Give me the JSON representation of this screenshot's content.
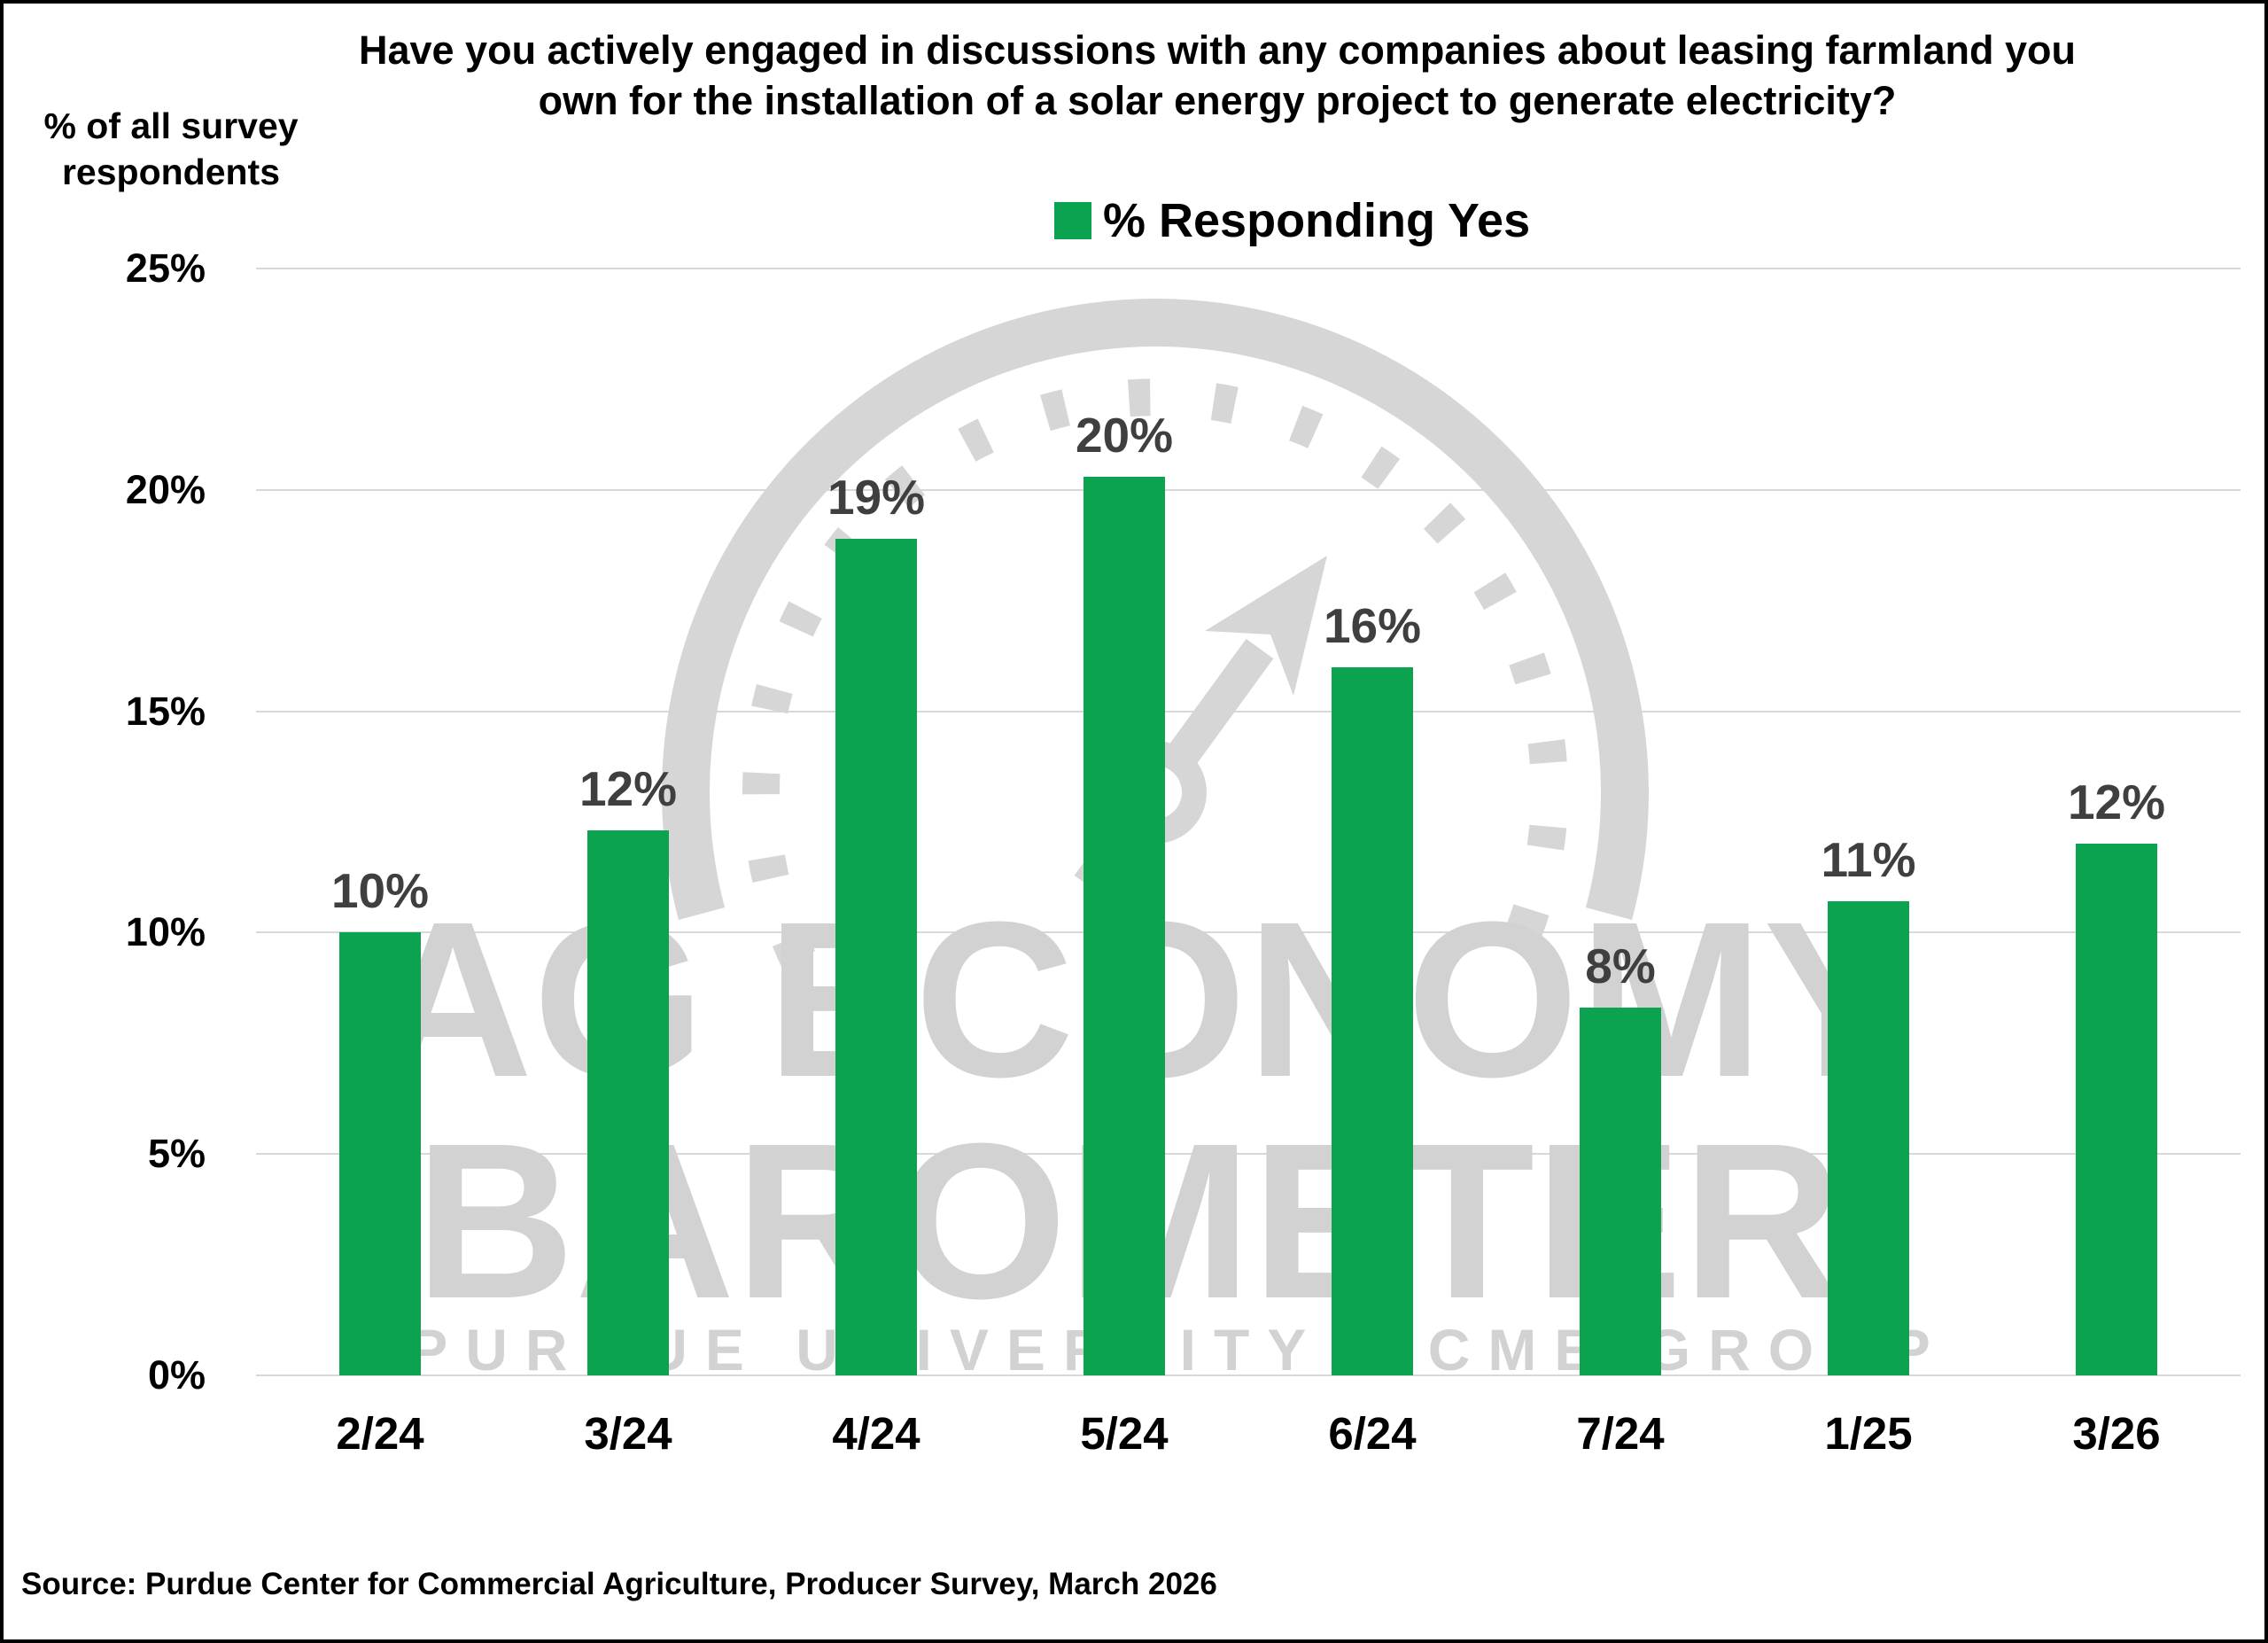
{
  "title": {
    "line1": "Have you actively engaged in discussions with any companies about leasing farmland you",
    "line2": "own for the installation of a solar energy project to generate electricity?"
  },
  "y_axis": {
    "title_line1": "% of all survey",
    "title_line2": "respondents"
  },
  "legend": {
    "label": "% Responding Yes"
  },
  "watermark": {
    "line1": "AG ECONOMY",
    "line2": "BAROMETER",
    "line3": "PURDUE UNIVERSITY · CME GROUP"
  },
  "source": "Source: Purdue Center for Commercial Agriculture, Producer Survey, March 2026",
  "chart_data": {
    "type": "bar",
    "title": "Have you actively engaged in discussions with any companies about leasing farmland you own for the installation of a solar energy project to generate electricity?",
    "categories": [
      "2/24",
      "3/24",
      "4/24",
      "5/24",
      "6/24",
      "7/24",
      "1/25",
      "3/26"
    ],
    "series": [
      {
        "name": "% Responding Yes",
        "color": "#0ba34f",
        "values": [
          10,
          12,
          19,
          20,
          16,
          8,
          11,
          12
        ],
        "values_precise": [
          10.0,
          12.3,
          18.9,
          20.3,
          16.0,
          8.3,
          10.7,
          12.0
        ],
        "labels": [
          "10%",
          "12%",
          "19%",
          "20%",
          "16%",
          "8%",
          "11%",
          "12%"
        ]
      }
    ],
    "ylabel": "% of all survey respondents",
    "ylim": [
      0,
      25
    ],
    "yticks": [
      {
        "value": 0,
        "label": "0%"
      },
      {
        "value": 5,
        "label": "5%"
      },
      {
        "value": 10,
        "label": "10%"
      },
      {
        "value": 15,
        "label": "15%"
      },
      {
        "value": 20,
        "label": "20%"
      },
      {
        "value": 25,
        "label": "25%"
      }
    ],
    "grid": true,
    "legend_position": "top-center",
    "bar_label_color": "#3f3f3f",
    "gridline_color": "#d8d8d8",
    "watermark_color": "#d2d2d2",
    "source": "Source: Purdue Center for Commercial Agriculture, Producer Survey, March 2026"
  }
}
